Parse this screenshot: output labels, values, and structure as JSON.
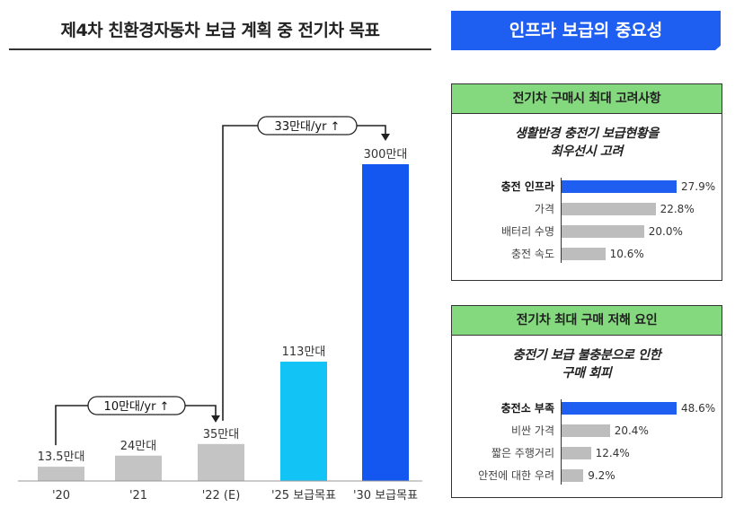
{
  "left_title": "제4차 친환경자동차 보급 계획 중 전기차 목표",
  "right_title": "인프라 보급의 중요성",
  "chart_data": [
    {
      "type": "bar",
      "title": "제4차 친환경자동차 보급 계획 중 전기차 목표",
      "categories": [
        "'20",
        "'21",
        "'22 (E)",
        "'25 보급목표",
        "'30 보급목표"
      ],
      "values": [
        13.5,
        24,
        35,
        113,
        300
      ],
      "data_labels": [
        "13.5만대",
        "24만대",
        "35만대",
        "113만대",
        "300만대"
      ],
      "colors": [
        "#c4c4c4",
        "#c4c4c4",
        "#c4c4c4",
        "#12c3f6",
        "#1457f0"
      ],
      "ylim": [
        0,
        300
      ],
      "annotations": [
        "10만대/yr ↑",
        "33만대/yr ↑"
      ]
    },
    {
      "type": "bar",
      "orientation": "horizontal",
      "title": "전기차 구매시 최대 고려사항",
      "subtitle": [
        "생활반경 충전기 보급현황을",
        "최우선시 고려"
      ],
      "categories": [
        "충전 인프라",
        "가격",
        "배터리 수명",
        "충전 속도"
      ],
      "values": [
        27.9,
        22.8,
        20.0,
        10.6
      ],
      "data_labels": [
        "27.9%",
        "22.8%",
        "20.0%",
        "10.6%"
      ],
      "highlight": 0
    },
    {
      "type": "bar",
      "orientation": "horizontal",
      "title": "전기차 최대 구매 저해 요인",
      "subtitle": [
        "충전기 보급 불충분으로 인한",
        "구매 회피"
      ],
      "categories": [
        "충전소 부족",
        "비싼 가격",
        "짧은 주행거리",
        "안전에 대한 우려"
      ],
      "values": [
        48.6,
        20.4,
        12.4,
        9.2
      ],
      "data_labels": [
        "48.6%",
        "20.4%",
        "12.4%",
        "9.2%"
      ],
      "highlight": 0
    }
  ]
}
